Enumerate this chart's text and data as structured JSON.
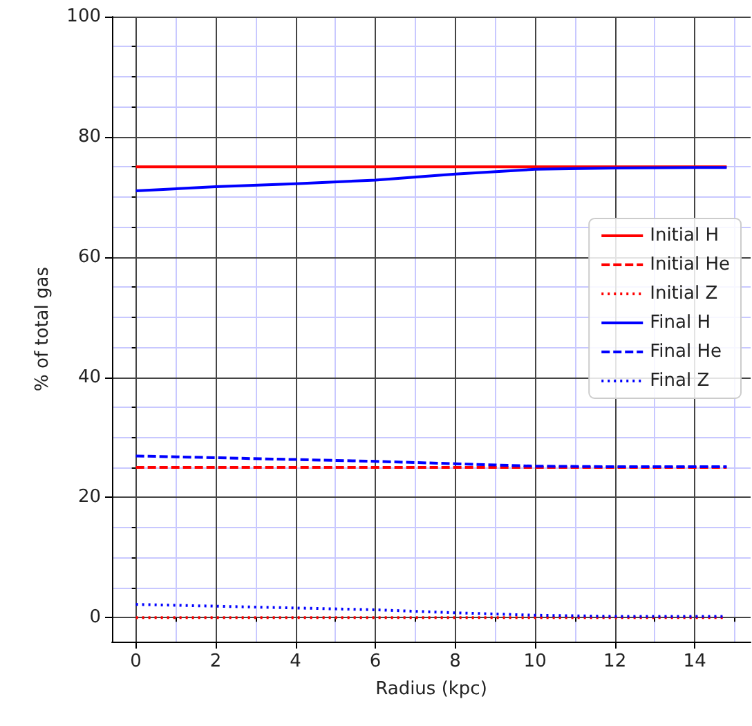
{
  "chart_data": {
    "type": "line",
    "xlabel": "Radius (kpc)",
    "ylabel": "% of total gas",
    "x": [
      0,
      2,
      4,
      6,
      8,
      10,
      12,
      14,
      14.8
    ],
    "xlim": [
      -0.6,
      15.4
    ],
    "xticks": [
      0,
      {
        "value": 1,
        "label": null
      },
      2,
      {
        "value": 3,
        "label": null
      },
      4,
      {
        "value": 5,
        "label": null
      },
      6,
      {
        "value": 7,
        "label": null
      },
      8,
      {
        "value": 9,
        "label": null
      },
      10,
      {
        "value": 11,
        "label": null
      },
      12,
      {
        "value": 13,
        "label": null
      },
      14,
      {
        "value": 15,
        "label": null
      }
    ],
    "ylim": [
      -4,
      100
    ],
    "yticks": [
      0,
      {
        "value": 5,
        "label": null
      },
      {
        "value": 10,
        "label": null
      },
      {
        "value": 15,
        "label": null
      },
      20,
      {
        "value": 25,
        "label": null
      },
      {
        "value": 30,
        "label": null
      },
      {
        "value": 35,
        "label": null
      },
      40,
      {
        "value": 45,
        "label": null
      },
      {
        "value": 50,
        "label": null
      },
      {
        "value": 55,
        "label": null
      },
      60,
      {
        "value": 65,
        "label": null
      },
      {
        "value": 70,
        "label": null
      },
      {
        "value": 75,
        "label": null
      },
      80,
      {
        "value": 85,
        "label": null
      },
      {
        "value": 90,
        "label": null
      },
      {
        "value": 95,
        "label": null
      },
      100
    ],
    "grid": true,
    "legend": "right",
    "marker": "none",
    "series": [
      {
        "name": "Initial H",
        "color": "#ff0000",
        "line_style": "solid",
        "values": [
          75,
          75,
          75,
          75,
          75,
          75,
          75,
          75,
          75
        ]
      },
      {
        "name": "Initial He",
        "color": "#ff0000",
        "line_style": "dashed",
        "values": [
          25,
          25,
          25,
          25,
          25,
          25,
          25,
          25,
          25
        ]
      },
      {
        "name": "Initial Z",
        "color": "#ff0000",
        "line_style": "dotted",
        "values": [
          0,
          0,
          0,
          0,
          0,
          0,
          0,
          0,
          0
        ]
      },
      {
        "name": "Final H",
        "color": "#0000ff",
        "line_style": "solid",
        "values": [
          71,
          71.7,
          72.2,
          72.8,
          73.8,
          74.6,
          74.8,
          74.9,
          74.9
        ]
      },
      {
        "name": "Final He",
        "color": "#0000ff",
        "line_style": "dashed",
        "values": [
          26.9,
          26.6,
          26.3,
          26,
          25.6,
          25.2,
          25.1,
          25.1,
          25.1
        ]
      },
      {
        "name": "Final Z",
        "color": "#0000ff",
        "line_style": "dotted",
        "values": [
          2.2,
          1.9,
          1.6,
          1.3,
          0.8,
          0.4,
          0.2,
          0.2,
          0.2
        ]
      }
    ]
  }
}
